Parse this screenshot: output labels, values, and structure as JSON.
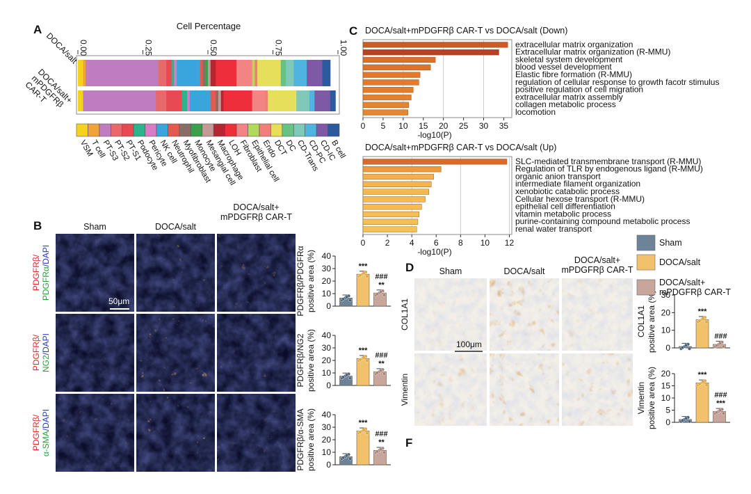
{
  "panel_letters": {
    "A": "A",
    "B": "B",
    "C": "C",
    "D": "D",
    "F": "F"
  },
  "panelA": {
    "title": "Cell Percentage",
    "ticks": [
      "0.00",
      "0.25",
      "0.50",
      "0.75",
      "1.00"
    ],
    "row_labels": [
      "DOCA/salt",
      "DOCA/salt+\nmPDGFRβ\nCAR-T"
    ],
    "cell_types": [
      "VSM",
      "T cell",
      "PT-S3",
      "PT-S2",
      "PT-S1",
      "Podocyte",
      "Pericyte",
      "NK cell",
      "Neutrophil",
      "Myofibroblast",
      "Monocyte",
      "Mesangial cell",
      "Macrophage",
      "LOH",
      "Fibroblast",
      "Epithelial cell",
      "Endo",
      "DCT",
      "DC",
      "CD-Trans",
      "CD-PC",
      "CD-IC",
      "B cell"
    ],
    "colors": [
      "#f4d31f",
      "#f0a33a",
      "#c07cc0",
      "#e8696c",
      "#e84a52",
      "#2cb48c",
      "#d77cc5",
      "#3aa4dd",
      "#e35a4e",
      "#8a6d66",
      "#3c9f4c",
      "#c59a94",
      "#b62532",
      "#ee2f3b",
      "#f28484",
      "#b2d85c",
      "#f07f77",
      "#e6df59",
      "#66c285",
      "#7fc9b8",
      "#4fb4e0",
      "#7e5aa6",
      "#2b5a9e"
    ]
  },
  "chart_data": [
    {
      "type": "bar",
      "orientation": "stacked-horizontal",
      "title": "Cell Percentage",
      "categories": [
        "DOCA/salt",
        "DOCA/salt+mPDGFRβ CAR-T"
      ],
      "xlim": [
        0,
        1
      ],
      "series": [
        {
          "name": "VSM",
          "values": [
            0.02,
            0.02
          ]
        },
        {
          "name": "T cell",
          "values": [
            0.01,
            0.0
          ]
        },
        {
          "name": "PT-S3",
          "values": [
            0.28,
            0.28
          ]
        },
        {
          "name": "PT-S2",
          "values": [
            0.03,
            0.04
          ]
        },
        {
          "name": "PT-S1",
          "values": [
            0.02,
            0.06
          ]
        },
        {
          "name": "Podocyte",
          "values": [
            0.01,
            0.02
          ]
        },
        {
          "name": "Pericyte",
          "values": [
            0.01,
            0.01
          ]
        },
        {
          "name": "NK cell",
          "values": [
            0.09,
            0.08
          ]
        },
        {
          "name": "Neutrophil",
          "values": [
            0.01,
            0.02
          ]
        },
        {
          "name": "Myofibroblast",
          "values": [
            0.01,
            0.01
          ]
        },
        {
          "name": "Monocyte",
          "values": [
            0.01,
            0.0
          ]
        },
        {
          "name": "Mesangial cell",
          "values": [
            0.01,
            0.01
          ]
        },
        {
          "name": "Macrophage",
          "values": [
            0.02,
            0.01
          ]
        },
        {
          "name": "LOH",
          "values": [
            0.08,
            0.11
          ]
        },
        {
          "name": "Fibroblast",
          "values": [
            0.06,
            0.05
          ]
        },
        {
          "name": "Epithelial cell",
          "values": [
            0.01,
            0.0
          ]
        },
        {
          "name": "Endo",
          "values": [
            0.01,
            0.01
          ]
        },
        {
          "name": "DCT",
          "values": [
            0.09,
            0.11
          ]
        },
        {
          "name": "DC",
          "values": [
            0.02,
            0.0
          ]
        },
        {
          "name": "CD-Trans",
          "values": [
            0.03,
            0.05
          ]
        },
        {
          "name": "CD-PC",
          "values": [
            0.05,
            0.02
          ]
        },
        {
          "name": "CD-IC",
          "values": [
            0.06,
            0.06
          ]
        },
        {
          "name": "B cell",
          "values": [
            0.03,
            0.02
          ]
        }
      ]
    },
    {
      "type": "bar",
      "orientation": "horizontal",
      "title": "DOCA/salt+mPDGFRβ CAR-T vs DOCA/salt (Down)",
      "xlabel": "-log10(P)",
      "xlim": [
        0,
        37
      ],
      "xticks": [
        0,
        5,
        10,
        15,
        20,
        25,
        30,
        35
      ],
      "categories": [
        "extracellular matrix organization",
        "Extracellular matrix organization (R-MMU)",
        "skeletal system development",
        "blood vessel development",
        "Elastic fibre formation (R-MMU)",
        "regulation of cellular response to growth facotr stimulus",
        "positive regulation of cell migration",
        "extracellular matrix assembly",
        "collagen metabolic process",
        "locomotion"
      ],
      "values": [
        36,
        33.8,
        18,
        16.8,
        14.2,
        13.9,
        12.5,
        12.0,
        11.4,
        11.2
      ]
    },
    {
      "type": "bar",
      "orientation": "horizontal",
      "title": "DOCA/salt+mPDGFRβ CAR-T vs DOCA/salt (Up)",
      "xlabel": "-log10(P)",
      "xlim": [
        0,
        12.2
      ],
      "xticks": [
        0,
        2,
        4,
        6,
        8,
        10,
        12
      ],
      "categories": [
        "SLC-mediated transmembrane transport (R-MMU)",
        "Regulation of TLR by endogenous ligand (R-MMU)",
        "organic anion transport",
        "intermediate filament organization",
        "xenobiotic catabolic process",
        "Cellular hexose transport (R-MMU)",
        "epithelial cell differentiation",
        "vitamin metabolic process",
        "purine-containing compound metabolic process",
        "renal water transport"
      ],
      "values": [
        11.8,
        6.4,
        5.8,
        5.6,
        5.4,
        5.1,
        4.8,
        4.6,
        4.5,
        4.4
      ]
    },
    {
      "type": "bar",
      "title": "",
      "ylabel": "PDGFRβ/PDGFRα\npositive area (%)",
      "categories": [
        "Sham",
        "DOCA/salt",
        "DOCA/salt+mPDGFRβ CAR-T"
      ],
      "values": [
        6.5,
        25.5,
        10.5
      ],
      "ylim": [
        0,
        40
      ],
      "yticks": [
        0,
        10,
        20,
        30,
        40
      ],
      "annotations": [
        [
          "***"
        ],
        [
          "###",
          "**"
        ]
      ]
    },
    {
      "type": "bar",
      "title": "",
      "ylabel": "PDGFRβ/NG2\npositive area (%)",
      "categories": [
        "Sham",
        "DOCA/salt",
        "DOCA/salt+mPDGFRβ CAR-T"
      ],
      "values": [
        7.5,
        21.5,
        11.0
      ],
      "ylim": [
        0,
        40
      ],
      "yticks": [
        0,
        10,
        20,
        30,
        40
      ],
      "annotations": [
        [
          "***"
        ],
        [
          "###",
          "**"
        ]
      ]
    },
    {
      "type": "bar",
      "title": "",
      "ylabel": "PDGFRβ/α-SMA\npositive area (%)",
      "categories": [
        "Sham",
        "DOCA/salt",
        "DOCA/salt+mPDGFRβ CAR-T"
      ],
      "values": [
        6.5,
        27.0,
        11.5
      ],
      "ylim": [
        0,
        40
      ],
      "yticks": [
        0,
        10,
        20,
        30,
        40
      ],
      "annotations": [
        [
          "***"
        ],
        [
          "###",
          "**"
        ]
      ]
    },
    {
      "type": "bar",
      "title": "",
      "ylabel": "COL1A1\npositive area (%)",
      "categories": [
        "Sham",
        "DOCA/salt",
        "DOCA/salt+mPDGFRβ CAR-T"
      ],
      "values": [
        0.8,
        16.0,
        2.0
      ],
      "ylim": [
        0,
        30
      ],
      "yticks": [
        0,
        10,
        20,
        30
      ],
      "annotations": [
        [
          "***"
        ],
        [
          "###"
        ]
      ]
    },
    {
      "type": "bar",
      "title": "",
      "ylabel": "Vimentin\npositive area (%)",
      "categories": [
        "Sham",
        "DOCA/salt",
        "DOCA/salt+mPDGFRβ CAR-T"
      ],
      "values": [
        1.2,
        16.2,
        4.5
      ],
      "ylim": [
        0,
        20
      ],
      "yticks": [
        0,
        5,
        10,
        15,
        20
      ],
      "annotations": [
        [
          "***"
        ],
        [
          "###",
          "***"
        ]
      ]
    }
  ],
  "panelB": {
    "column_headers": [
      "Sham",
      "DOCA/salt",
      "DOCA/salt+\nmPDGFRβ CAR-T"
    ],
    "row_labels": [
      {
        "red": "PDGFRβ/",
        "green": "PDGFRα",
        "blue": "/DAPI"
      },
      {
        "red": "PDGFRβ/",
        "green": "NG2",
        "blue": "/DAPI"
      },
      {
        "red": "PDGFRβ/",
        "green": "α-SMA",
        "blue": "/DAPI"
      }
    ],
    "scale_bar": "50μm",
    "bar_colors": [
      "#6d8398",
      "#f1c16b",
      "#c8a69c"
    ]
  },
  "panelD": {
    "column_headers": [
      "Sham",
      "DOCA/salt",
      "DOCA/salt+\nmPDGFRβ CAR-T"
    ],
    "row_labels": [
      "COL1A1",
      "Vimentin"
    ],
    "scale_bar": "100μm",
    "legend": [
      {
        "label": "Sham",
        "color": "#6d8398"
      },
      {
        "label": "DOCA/salt",
        "color": "#f1c16b"
      },
      {
        "label": "DOCA/salt+\nmPDGFRβ CAR-T",
        "color": "#c8a69c"
      }
    ]
  }
}
